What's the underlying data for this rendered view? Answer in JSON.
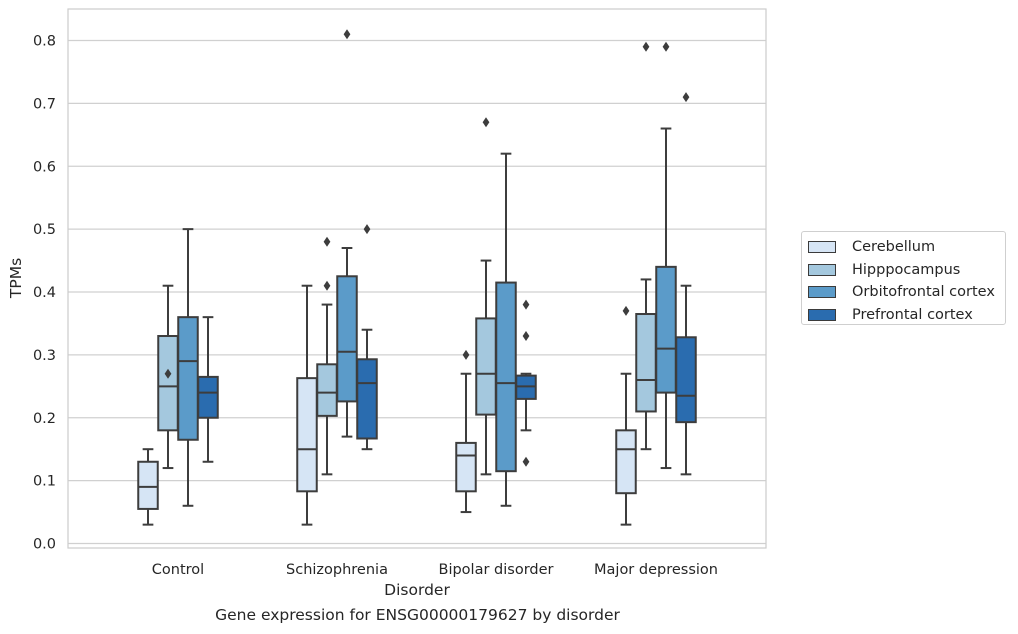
{
  "chart_data": {
    "type": "box",
    "title": "",
    "caption": "Gene expression for ENSG00000179627 by disorder",
    "xlabel": "Disorder",
    "ylabel": "TPMs",
    "ylim": [
      -0.005,
      0.85
    ],
    "yticks": [
      "0.0",
      "0.1",
      "0.2",
      "0.3",
      "0.4",
      "0.5",
      "0.6",
      "0.7",
      "0.8"
    ],
    "grid": "horizontal",
    "legend_position": "right",
    "categories": [
      "Control",
      "Schizophrenia",
      "Bipolar disorder",
      "Major depression"
    ],
    "series": [
      {
        "name": "Cerebellum",
        "color": "#d6e5f5",
        "boxes": [
          {
            "whislo": 0.03,
            "q1": 0.055,
            "med": 0.09,
            "q3": 0.13,
            "whishi": 0.15,
            "fliers": []
          },
          {
            "whislo": 0.03,
            "q1": 0.083,
            "med": 0.15,
            "q3": 0.263,
            "whishi": 0.41,
            "fliers": []
          },
          {
            "whislo": 0.05,
            "q1": 0.083,
            "med": 0.14,
            "q3": 0.16,
            "whishi": 0.27,
            "fliers": [
              0.3
            ]
          },
          {
            "whislo": 0.03,
            "q1": 0.08,
            "med": 0.15,
            "q3": 0.18,
            "whishi": 0.27,
            "fliers": [
              0.37
            ]
          }
        ]
      },
      {
        "name": "Hipppocampus",
        "color": "#a4c8de",
        "boxes": [
          {
            "whislo": 0.12,
            "q1": 0.18,
            "med": 0.25,
            "q3": 0.33,
            "whishi": 0.41,
            "fliers": [
              0.27
            ]
          },
          {
            "whislo": 0.11,
            "q1": 0.203,
            "med": 0.24,
            "q3": 0.285,
            "whishi": 0.38,
            "fliers": [
              0.41,
              0.48
            ]
          },
          {
            "whislo": 0.11,
            "q1": 0.205,
            "med": 0.27,
            "q3": 0.358,
            "whishi": 0.45,
            "fliers": [
              0.67
            ]
          },
          {
            "whislo": 0.15,
            "q1": 0.21,
            "med": 0.26,
            "q3": 0.365,
            "whishi": 0.42,
            "fliers": [
              0.79
            ]
          }
        ]
      },
      {
        "name": "Orbitofrontal cortex",
        "color": "#5b9bc9",
        "boxes": [
          {
            "whislo": 0.06,
            "q1": 0.165,
            "med": 0.29,
            "q3": 0.36,
            "whishi": 0.5,
            "fliers": []
          },
          {
            "whislo": 0.17,
            "q1": 0.226,
            "med": 0.305,
            "q3": 0.425,
            "whishi": 0.47,
            "fliers": [
              0.81
            ]
          },
          {
            "whislo": 0.06,
            "q1": 0.115,
            "med": 0.255,
            "q3": 0.415,
            "whishi": 0.62,
            "fliers": []
          },
          {
            "whislo": 0.12,
            "q1": 0.24,
            "med": 0.31,
            "q3": 0.44,
            "whishi": 0.66,
            "fliers": [
              0.79
            ]
          }
        ]
      },
      {
        "name": "Prefrontal cortex",
        "color": "#2a6caf",
        "boxes": [
          {
            "whislo": 0.13,
            "q1": 0.2,
            "med": 0.24,
            "q3": 0.265,
            "whishi": 0.36,
            "fliers": []
          },
          {
            "whislo": 0.15,
            "q1": 0.167,
            "med": 0.255,
            "q3": 0.293,
            "whishi": 0.34,
            "fliers": [
              0.5
            ]
          },
          {
            "whislo": 0.18,
            "q1": 0.23,
            "med": 0.25,
            "q3": 0.267,
            "whishi": 0.27,
            "fliers": [
              0.13,
              0.33,
              0.38
            ]
          },
          {
            "whislo": 0.11,
            "q1": 0.193,
            "med": 0.235,
            "q3": 0.328,
            "whishi": 0.41,
            "fliers": [
              0.71
            ]
          }
        ]
      }
    ]
  }
}
